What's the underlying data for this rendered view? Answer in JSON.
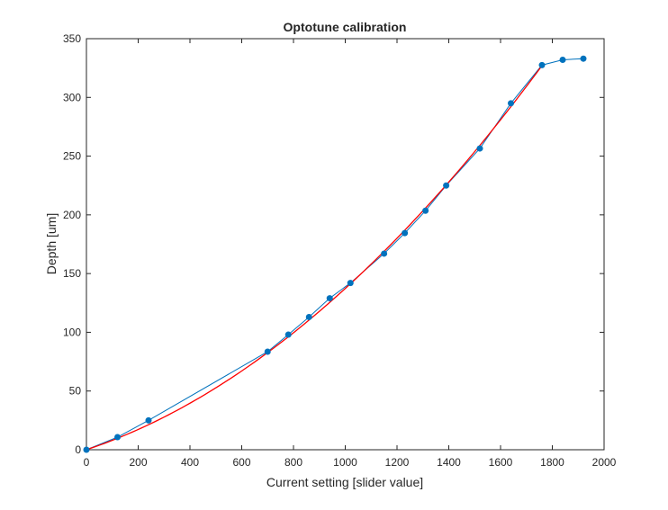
{
  "chart_data": {
    "type": "line",
    "title": "Optotune calibration",
    "xlabel": "Current setting [slider value]",
    "ylabel": "Depth [um]",
    "xlim": [
      0,
      2000
    ],
    "ylim": [
      0,
      350
    ],
    "xticks": [
      0,
      200,
      400,
      600,
      800,
      1000,
      1200,
      1400,
      1600,
      1800,
      2000
    ],
    "yticks": [
      0,
      50,
      100,
      150,
      200,
      250,
      300,
      350
    ],
    "grid": false,
    "series": [
      {
        "style": "line-with-markers",
        "color": "#0072BD",
        "x": [
          0,
          120,
          240,
          700,
          780,
          860,
          940,
          1020,
          1150,
          1230,
          1310,
          1390,
          1520,
          1640,
          1760,
          1840,
          1920
        ],
        "y": [
          0,
          10.7,
          25,
          83.5,
          98,
          113,
          129,
          142,
          167,
          184.5,
          203.5,
          225,
          256.5,
          295,
          327.5,
          332,
          333
        ]
      },
      {
        "style": "fit-curve",
        "color": "#FF0000",
        "model": "quadratic",
        "coefficients": {
          "a1": 0.0735,
          "a2": 6.38e-05
        },
        "x_range": [
          0,
          1760
        ]
      }
    ]
  }
}
